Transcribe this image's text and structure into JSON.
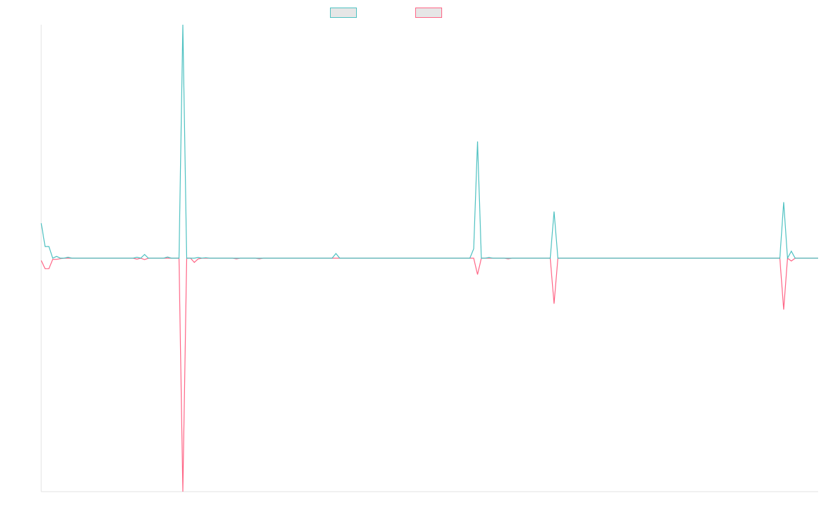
{
  "chart_data": {
    "type": "line",
    "title": "",
    "xlabel": "",
    "ylabel": "",
    "legend_position": "top",
    "grid": false,
    "x_count": 204,
    "ylim": [
      -1,
      1
    ],
    "series": [
      {
        "name": "",
        "color": "#4bc0c0",
        "points": [
          [
            0,
            0.15
          ],
          [
            1,
            0.05
          ],
          [
            2,
            0.05
          ],
          [
            3,
            0.0
          ],
          [
            4,
            0.008
          ],
          [
            5,
            0.0
          ],
          [
            6,
            0.0
          ],
          [
            7,
            0.004
          ],
          [
            8,
            0.0
          ],
          [
            24,
            0.0
          ],
          [
            25,
            0.004
          ],
          [
            26,
            0.0
          ],
          [
            27,
            0.016
          ],
          [
            28,
            0.0
          ],
          [
            32,
            0.0
          ],
          [
            33,
            0.005
          ],
          [
            34,
            0.0
          ],
          [
            36,
            0.0
          ],
          [
            37,
            1.0
          ],
          [
            38,
            0.0
          ],
          [
            40,
            0.0
          ],
          [
            41,
            0.003
          ],
          [
            42,
            0.0
          ],
          [
            43,
            0.002
          ],
          [
            44,
            0.0
          ],
          [
            76,
            0.0
          ],
          [
            77,
            0.02
          ],
          [
            78,
            0.0
          ],
          [
            112,
            0.0
          ],
          [
            113,
            0.04
          ],
          [
            114,
            0.5
          ],
          [
            115,
            0.0
          ],
          [
            116,
            0.0
          ],
          [
            117,
            0.003
          ],
          [
            118,
            0.0
          ],
          [
            133,
            0.0
          ],
          [
            134,
            0.2
          ],
          [
            135,
            0.0
          ],
          [
            193,
            0.0
          ],
          [
            194,
            0.24
          ],
          [
            195,
            0.0
          ],
          [
            196,
            0.03
          ],
          [
            197,
            0.0
          ],
          [
            203,
            0.0
          ]
        ]
      },
      {
        "name": "",
        "color": "#ff6384",
        "points": [
          [
            0,
            -0.01
          ],
          [
            1,
            -0.045
          ],
          [
            2,
            -0.045
          ],
          [
            3,
            -0.005
          ],
          [
            4,
            -0.005
          ],
          [
            5,
            -0.002
          ],
          [
            6,
            0.0
          ],
          [
            24,
            0.0
          ],
          [
            25,
            -0.004
          ],
          [
            26,
            0.0
          ],
          [
            27,
            -0.006
          ],
          [
            28,
            0.0
          ],
          [
            36,
            0.0
          ],
          [
            37,
            -1.0
          ],
          [
            38,
            0.0
          ],
          [
            39,
            0.0
          ],
          [
            40,
            -0.018
          ],
          [
            41,
            -0.003
          ],
          [
            42,
            0.0
          ],
          [
            50,
            0.0
          ],
          [
            51,
            -0.003
          ],
          [
            52,
            0.0
          ],
          [
            56,
            0.0
          ],
          [
            57,
            -0.003
          ],
          [
            58,
            0.0
          ],
          [
            113,
            0.0
          ],
          [
            114,
            -0.07
          ],
          [
            115,
            0.0
          ],
          [
            121,
            0.0
          ],
          [
            122,
            -0.003
          ],
          [
            123,
            0.0
          ],
          [
            133,
            0.0
          ],
          [
            134,
            -0.195
          ],
          [
            135,
            0.0
          ],
          [
            193,
            0.0
          ],
          [
            194,
            -0.22
          ],
          [
            195,
            0.0
          ],
          [
            196,
            -0.012
          ],
          [
            197,
            0.0
          ],
          [
            203,
            0.0
          ]
        ]
      }
    ]
  }
}
